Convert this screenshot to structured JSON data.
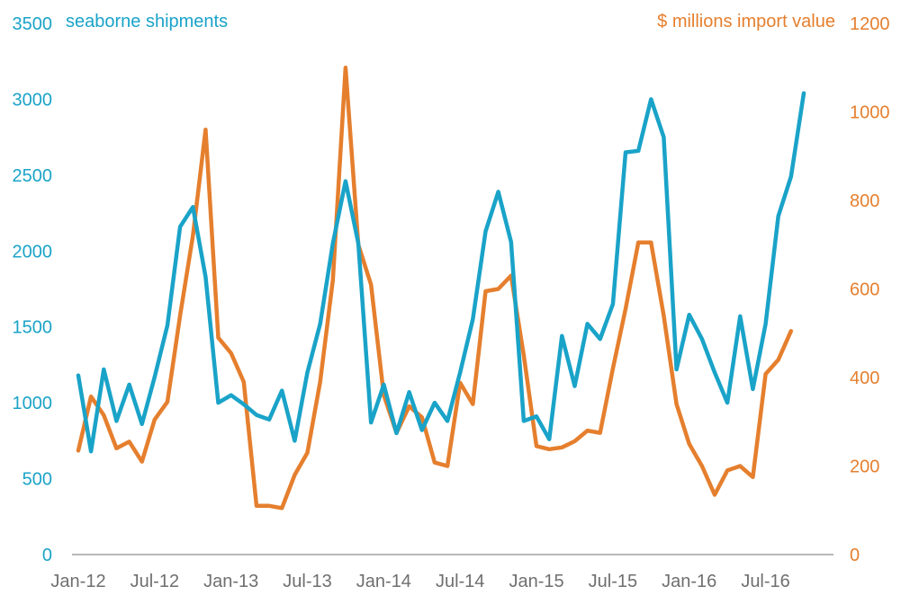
{
  "chart_data": {
    "type": "line",
    "title": "",
    "left_axis": {
      "label": "seaborne shipments",
      "ylim": [
        0,
        3500
      ],
      "ticks": [
        0,
        500,
        1000,
        1500,
        2000,
        2500,
        3000,
        3500
      ],
      "tick_labels": [
        "0",
        "500",
        "1000",
        "1500",
        "2000",
        "2500",
        "3000",
        "3500"
      ],
      "color": "#1aa3c8"
    },
    "right_axis": {
      "label": "$ millions import value",
      "ylim": [
        0,
        1200
      ],
      "ticks": [
        0,
        200,
        400,
        600,
        800,
        1000,
        1200
      ],
      "tick_labels": [
        "0",
        "200",
        "400",
        "600",
        "800",
        "1000",
        "1200"
      ],
      "color": "#e57f2e"
    },
    "x_tick_labels": [
      "Jan-12",
      "Jul-12",
      "Jan-13",
      "Jul-13",
      "Jan-14",
      "Jul-14",
      "Jan-15",
      "Jul-15",
      "Jan-16",
      "Jul-16"
    ],
    "x_tick_months": [
      0,
      6,
      12,
      18,
      24,
      30,
      36,
      42,
      48,
      54
    ],
    "month_count": 60,
    "series": [
      {
        "name": "seaborne shipments",
        "axis": "left",
        "color": "#1aa3c8",
        "values": [
          1180,
          680,
          1220,
          880,
          1120,
          860,
          1170,
          1510,
          2160,
          2290,
          1830,
          1000,
          1050,
          990,
          920,
          890,
          1080,
          750,
          1200,
          1520,
          2050,
          2460,
          2050,
          870,
          1120,
          800,
          1070,
          820,
          1000,
          880,
          1200,
          1550,
          2130,
          2390,
          2060,
          880,
          910,
          760,
          1440,
          1110,
          1520,
          1420,
          1650,
          2650,
          2660,
          3000,
          2750,
          1220,
          1580,
          1420,
          1200,
          1000,
          1570,
          1090,
          1520,
          2230,
          2490,
          3040
        ]
      },
      {
        "name": "$ millions import value",
        "axis": "right",
        "color": "#e57f2e",
        "values": [
          235,
          357,
          315,
          240,
          255,
          210,
          305,
          345,
          540,
          720,
          960,
          490,
          455,
          390,
          110,
          110,
          105,
          180,
          230,
          390,
          620,
          1100,
          700,
          610,
          360,
          275,
          335,
          310,
          208,
          200,
          388,
          340,
          595,
          600,
          630,
          450,
          245,
          238,
          242,
          256,
          280,
          275,
          420,
          555,
          705,
          705,
          540,
          340,
          250,
          200,
          135,
          190,
          200,
          175,
          408,
          440,
          505
        ]
      }
    ]
  }
}
